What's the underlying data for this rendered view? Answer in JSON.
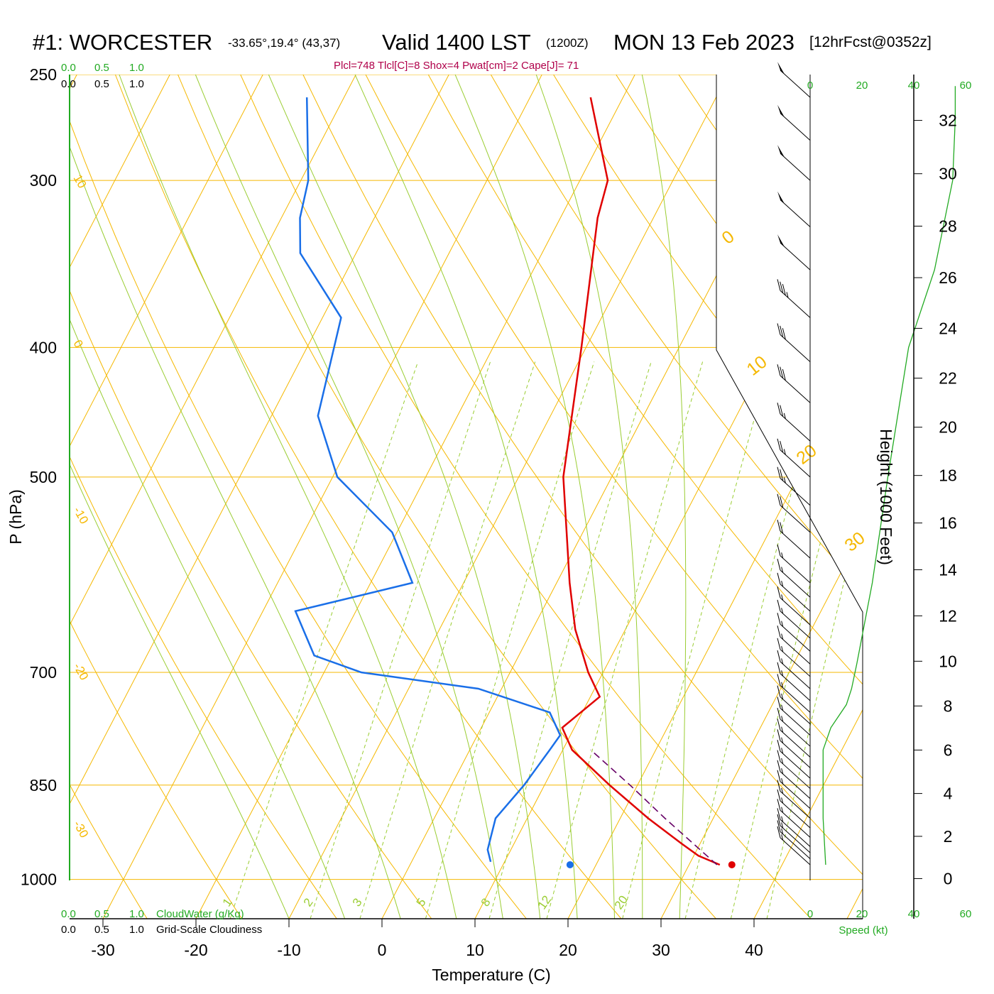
{
  "header": {
    "station": "#1: WORCESTER",
    "coords": "-33.65°,19.4° (43,37)",
    "valid": "Valid 1400 LST",
    "utc": "(1200Z)",
    "date": "MON 13 Feb 2023",
    "forecast": "[12hrFcst@0352z]"
  },
  "indices_text": "Plcl=748 Tlcl[C]=8 Shox=4 Pwat[cm]=2 Cape[J]= 71",
  "cloud_scale": {
    "top_green": [
      "0.0",
      "0.5",
      "1.0"
    ],
    "top_black": [
      "0.0",
      "0.5",
      "1.0"
    ],
    "bottom_green": [
      "0.0",
      "0.5",
      "1.0"
    ],
    "bottom_black": [
      "0.0",
      "0.5",
      "1.0"
    ],
    "cloudwater_label": "CloudWater (g/Kg)",
    "cloudiness_label": "Grid-Scale Cloudiness"
  },
  "colors": {
    "isotherm": "#f5b800",
    "dry_adiabat": "#f5b800",
    "moist_adiabat": "#9acd32",
    "mixing_ratio": "#9acd32",
    "temperature": "#e00000",
    "dewpoint": "#1a6fe8",
    "parcel": "#660066",
    "wind_speed": "#22aa22",
    "cloud_axis": "#22aa22",
    "indices": "#b0004a"
  },
  "chart_data": {
    "type": "skew-t",
    "xlabel": "Temperature (C)",
    "ylabel": "P (hPa)",
    "right_ylabel": "Height (1000 Feet)",
    "x_ticks": [
      -30,
      -20,
      -10,
      0,
      10,
      20,
      30,
      40
    ],
    "pressure_ticks": [
      250,
      300,
      400,
      500,
      700,
      850,
      1000
    ],
    "height_ticks": [
      0,
      2,
      4,
      6,
      8,
      10,
      12,
      14,
      16,
      18,
      20,
      22,
      24,
      26,
      28,
      30,
      32
    ],
    "isotherm_labels": [
      10,
      0,
      -10,
      -20,
      -30,
      0,
      10,
      20,
      30
    ],
    "mixing_ratio_labels": [
      "1",
      "2",
      "3",
      "5",
      "8",
      "12",
      "20"
    ],
    "speed_axis_ticks_top": [
      "0",
      "20",
      "40",
      "60"
    ],
    "speed_axis_ticks_bottom": [
      "0",
      "20",
      "40",
      "60"
    ],
    "speed_axis_label": "Speed (kt)",
    "temperature_profile": [
      {
        "p": 260,
        "t": -23.5
      },
      {
        "p": 300,
        "t": -17.0
      },
      {
        "p": 320,
        "t": -16.0
      },
      {
        "p": 400,
        "t": -10.5
      },
      {
        "p": 500,
        "t": -5.2
      },
      {
        "p": 600,
        "t": 1.4
      },
      {
        "p": 650,
        "t": 4.6
      },
      {
        "p": 700,
        "t": 8.4
      },
      {
        "p": 730,
        "t": 11.0
      },
      {
        "p": 770,
        "t": 8.7
      },
      {
        "p": 800,
        "t": 11.0
      },
      {
        "p": 850,
        "t": 17.0
      },
      {
        "p": 900,
        "t": 23.0
      },
      {
        "p": 940,
        "t": 28.0
      },
      {
        "p": 960,
        "t": 30.5
      },
      {
        "p": 975,
        "t": 33.3
      }
    ],
    "dewpoint_profile": [
      {
        "p": 260,
        "t": -54.0
      },
      {
        "p": 300,
        "t": -49.2
      },
      {
        "p": 320,
        "t": -48.0
      },
      {
        "p": 340,
        "t": -46.0
      },
      {
        "p": 380,
        "t": -38.0
      },
      {
        "p": 450,
        "t": -35.0
      },
      {
        "p": 500,
        "t": -29.5
      },
      {
        "p": 550,
        "t": -20.5
      },
      {
        "p": 600,
        "t": -15.5
      },
      {
        "p": 630,
        "t": -26.5
      },
      {
        "p": 680,
        "t": -22.0
      },
      {
        "p": 700,
        "t": -16.0
      },
      {
        "p": 720,
        "t": -2.5
      },
      {
        "p": 750,
        "t": 6.5
      },
      {
        "p": 780,
        "t": 8.9
      },
      {
        "p": 800,
        "t": 8.6
      },
      {
        "p": 850,
        "t": 7.8
      },
      {
        "p": 900,
        "t": 6.6
      },
      {
        "p": 950,
        "t": 7.5
      },
      {
        "p": 970,
        "t": 8.5
      }
    ],
    "parcel_path": [
      {
        "p": 975,
        "t": 33.0
      },
      {
        "p": 900,
        "t": 24.8
      },
      {
        "p": 850,
        "t": 19.2
      },
      {
        "p": 800,
        "t": 13.0
      }
    ],
    "surface_temperature_marker": {
      "p": 975,
      "t": 34.6
    },
    "surface_dewpoint_marker": {
      "p": 975,
      "t": 17.2
    },
    "wind_barbs": [
      {
        "p": 975,
        "spd": 15
      },
      {
        "p": 965,
        "spd": 15
      },
      {
        "p": 955,
        "spd": 15
      },
      {
        "p": 945,
        "spd": 15
      },
      {
        "p": 930,
        "spd": 15
      },
      {
        "p": 915,
        "spd": 15
      },
      {
        "p": 900,
        "spd": 15
      },
      {
        "p": 885,
        "spd": 15
      },
      {
        "p": 870,
        "spd": 15
      },
      {
        "p": 855,
        "spd": 15
      },
      {
        "p": 840,
        "spd": 15
      },
      {
        "p": 825,
        "spd": 15
      },
      {
        "p": 810,
        "spd": 15
      },
      {
        "p": 795,
        "spd": 15
      },
      {
        "p": 780,
        "spd": 15
      },
      {
        "p": 765,
        "spd": 15
      },
      {
        "p": 750,
        "spd": 15
      },
      {
        "p": 735,
        "spd": 15
      },
      {
        "p": 720,
        "spd": 15
      },
      {
        "p": 705,
        "spd": 15
      },
      {
        "p": 690,
        "spd": 15
      },
      {
        "p": 675,
        "spd": 15
      },
      {
        "p": 660,
        "spd": 15
      },
      {
        "p": 645,
        "spd": 15
      },
      {
        "p": 630,
        "spd": 15
      },
      {
        "p": 615,
        "spd": 15
      },
      {
        "p": 600,
        "spd": 15
      },
      {
        "p": 575,
        "spd": 20
      },
      {
        "p": 550,
        "spd": 20
      },
      {
        "p": 525,
        "spd": 25
      },
      {
        "p": 500,
        "spd": 25
      },
      {
        "p": 470,
        "spd": 25
      },
      {
        "p": 440,
        "spd": 30
      },
      {
        "p": 410,
        "spd": 30
      },
      {
        "p": 380,
        "spd": 35
      },
      {
        "p": 350,
        "spd": 50
      },
      {
        "p": 325,
        "spd": 50
      },
      {
        "p": 300,
        "spd": 50
      },
      {
        "p": 280,
        "spd": 50
      },
      {
        "p": 260,
        "spd": 50
      }
    ],
    "wind_speed_profile": [
      {
        "p": 975,
        "spd": 6
      },
      {
        "p": 900,
        "spd": 5
      },
      {
        "p": 800,
        "spd": 5
      },
      {
        "p": 770,
        "spd": 8
      },
      {
        "p": 740,
        "spd": 14
      },
      {
        "p": 720,
        "spd": 16
      },
      {
        "p": 690,
        "spd": 18
      },
      {
        "p": 600,
        "spd": 24
      },
      {
        "p": 500,
        "spd": 30
      },
      {
        "p": 400,
        "spd": 38
      },
      {
        "p": 350,
        "spd": 48
      },
      {
        "p": 300,
        "spd": 55
      },
      {
        "p": 270,
        "spd": 56
      },
      {
        "p": 255,
        "spd": 56
      }
    ]
  }
}
